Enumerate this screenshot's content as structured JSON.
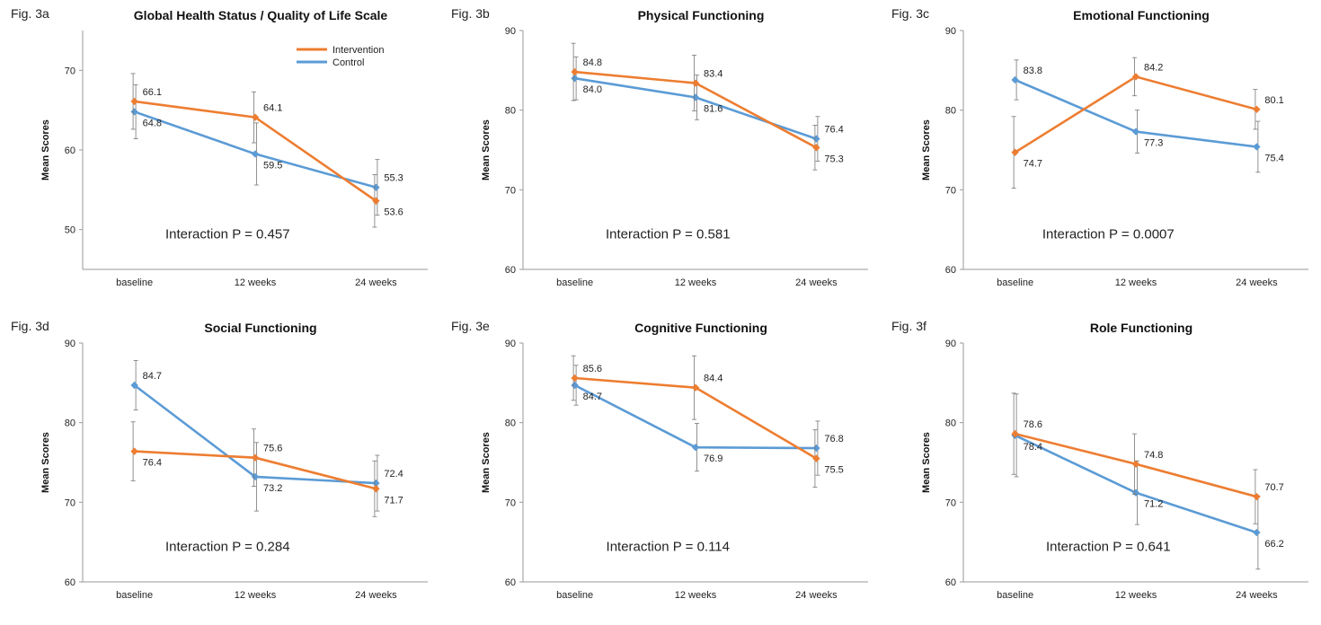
{
  "chart_data": [
    {
      "type": "line",
      "fig_label": "Fig. 3a",
      "title": "Global Health Status / Quality of Life Scale",
      "ylabel": "Mean Scores",
      "xlabel": "",
      "categories": [
        "baseline",
        "12 weeks",
        "24 weeks"
      ],
      "ylim": [
        45,
        75
      ],
      "yticks": [
        50,
        60,
        70
      ],
      "grid": false,
      "legend": "top-right",
      "annotation": "Interaction P = 0.457",
      "series": [
        {
          "name": "Intervention",
          "color": "#ED7D31",
          "values": [
            66.1,
            64.1,
            53.6
          ],
          "labels": [
            "66.1",
            "64.1",
            "53.6"
          ],
          "errors": [
            3.5,
            3.2,
            3.3
          ]
        },
        {
          "name": "Control",
          "color": "#5B9BD5",
          "values": [
            64.8,
            59.5,
            55.3
          ],
          "labels": [
            "64.8",
            "59.5",
            "55.3"
          ],
          "errors": [
            3.4,
            3.9,
            3.5
          ]
        }
      ]
    },
    {
      "type": "line",
      "fig_label": "Fig. 3b",
      "title": "Physical Functioning",
      "ylabel": "Mean Scores",
      "xlabel": "",
      "categories": [
        "baseline",
        "12 weeks",
        "24 weeks"
      ],
      "ylim": [
        60,
        90
      ],
      "yticks": [
        60,
        70,
        80,
        90
      ],
      "grid": false,
      "annotation": "Interaction P = 0.581",
      "series": [
        {
          "name": "Intervention",
          "color": "#ED7D31",
          "values": [
            84.8,
            83.4,
            75.3
          ],
          "labels": [
            "84.8",
            "83.4",
            "75.3"
          ],
          "errors": [
            3.6,
            3.5,
            2.8
          ]
        },
        {
          "name": "Control",
          "color": "#5B9BD5",
          "values": [
            84.0,
            81.6,
            76.4
          ],
          "labels": [
            "84.0",
            "81.6",
            "76.4"
          ],
          "errors": [
            2.7,
            2.8,
            2.8
          ]
        }
      ]
    },
    {
      "type": "line",
      "fig_label": "Fig. 3c",
      "title": "Emotional Functioning",
      "ylabel": "Mean Scores",
      "xlabel": "",
      "categories": [
        "baseline",
        "12 weeks",
        "24 weeks"
      ],
      "ylim": [
        60,
        90
      ],
      "yticks": [
        60,
        70,
        80,
        90
      ],
      "grid": false,
      "annotation": "Interaction P = 0.0007",
      "series": [
        {
          "name": "Intervention",
          "color": "#ED7D31",
          "values": [
            74.7,
            84.2,
            80.1
          ],
          "labels": [
            "74.7",
            "84.2",
            "80.1"
          ],
          "errors": [
            4.5,
            2.4,
            2.5
          ]
        },
        {
          "name": "Control",
          "color": "#5B9BD5",
          "values": [
            83.8,
            77.3,
            75.4
          ],
          "labels": [
            "83.8",
            "77.3",
            "75.4"
          ],
          "errors": [
            2.5,
            2.7,
            3.2
          ]
        }
      ]
    },
    {
      "type": "line",
      "fig_label": "Fig. 3d",
      "title": "Social Functioning",
      "ylabel": "Mean Scores",
      "xlabel": "",
      "categories": [
        "baseline",
        "12 weeks",
        "24 weeks"
      ],
      "ylim": [
        60,
        90
      ],
      "yticks": [
        60,
        70,
        80,
        90
      ],
      "grid": false,
      "annotation": "Interaction P = 0.284",
      "series": [
        {
          "name": "Intervention",
          "color": "#ED7D31",
          "values": [
            76.4,
            75.6,
            71.7
          ],
          "labels": [
            "76.4",
            "75.6",
            "71.7"
          ],
          "errors": [
            3.7,
            3.6,
            3.5
          ]
        },
        {
          "name": "Control",
          "color": "#5B9BD5",
          "values": [
            84.7,
            73.2,
            72.4
          ],
          "labels": [
            "84.7",
            "73.2",
            "72.4"
          ],
          "errors": [
            3.1,
            4.3,
            3.5
          ]
        }
      ]
    },
    {
      "type": "line",
      "fig_label": "Fig. 3e",
      "title": "Cognitive Functioning",
      "ylabel": "Mean Scores",
      "xlabel": "",
      "categories": [
        "baseline",
        "12 weeks",
        "24 weeks"
      ],
      "ylim": [
        60,
        90
      ],
      "yticks": [
        60,
        70,
        80,
        90
      ],
      "grid": false,
      "annotation": "Interaction P = 0.114",
      "series": [
        {
          "name": "Intervention",
          "color": "#ED7D31",
          "values": [
            85.6,
            84.4,
            75.5
          ],
          "labels": [
            "85.6",
            "84.4",
            "75.5"
          ],
          "errors": [
            2.8,
            4.0,
            3.6
          ]
        },
        {
          "name": "Control",
          "color": "#5B9BD5",
          "values": [
            84.7,
            76.9,
            76.8
          ],
          "labels": [
            "84.7",
            "76.9",
            "76.8"
          ],
          "errors": [
            2.5,
            3.0,
            3.4
          ]
        }
      ]
    },
    {
      "type": "line",
      "fig_label": "Fig. 3f",
      "title": "Role Functioning",
      "ylabel": "Mean Scores",
      "xlabel": "",
      "categories": [
        "baseline",
        "12 weeks",
        "24 weeks"
      ],
      "ylim": [
        60,
        90
      ],
      "yticks": [
        60,
        70,
        80,
        90
      ],
      "grid": false,
      "annotation": "Interaction P = 0.641",
      "series": [
        {
          "name": "Intervention",
          "color": "#ED7D31",
          "values": [
            78.6,
            74.8,
            70.7
          ],
          "labels": [
            "78.6",
            "74.8",
            "70.7"
          ],
          "errors": [
            5.1,
            3.8,
            3.4
          ]
        },
        {
          "name": "Control",
          "color": "#5B9BD5",
          "values": [
            78.4,
            71.2,
            66.2
          ],
          "labels": [
            "78.4",
            "71.2",
            "66.2"
          ],
          "errors": [
            5.2,
            4.0,
            4.6
          ]
        }
      ]
    }
  ]
}
